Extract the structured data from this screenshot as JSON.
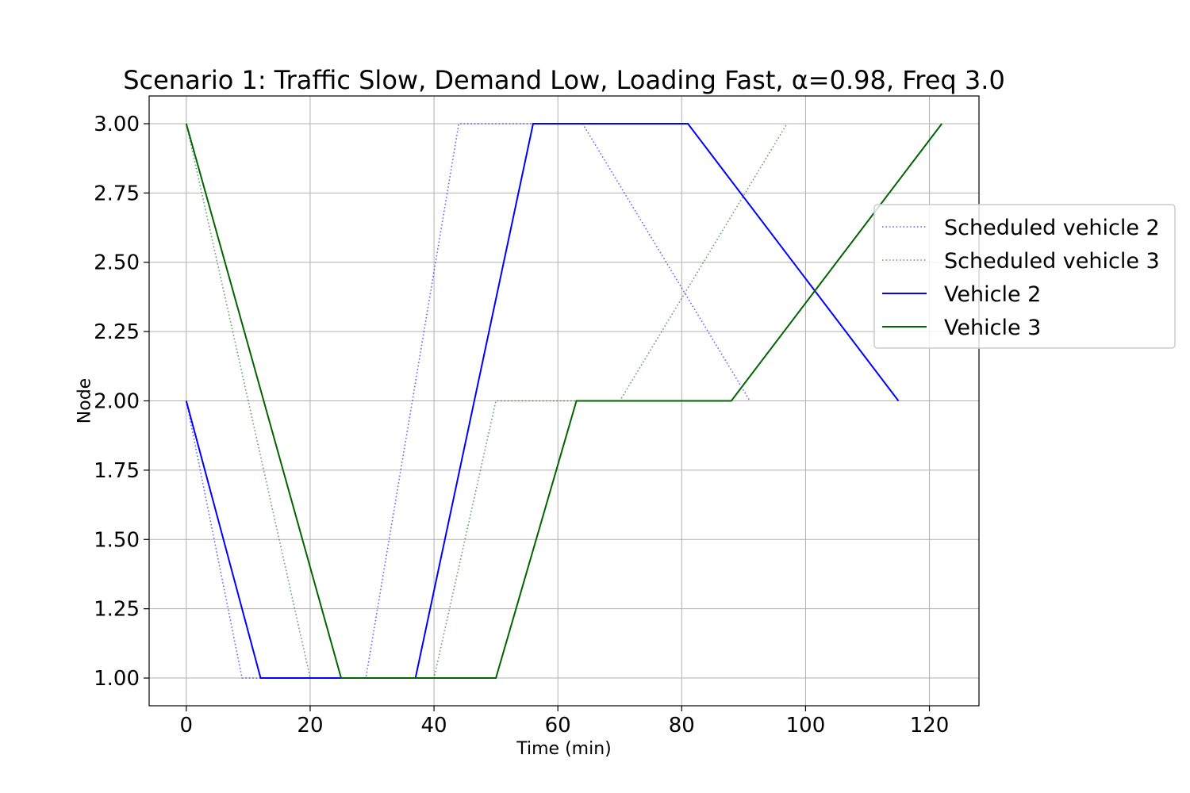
{
  "chart_data": {
    "type": "line",
    "title": "Scenario 1: Traffic Slow, Demand Low, Loading Fast, α=0.98, Freq 3.0",
    "xlabel": "Time (min)",
    "ylabel": "Node",
    "xlim": [
      -6,
      128
    ],
    "ylim": [
      0.9,
      3.1
    ],
    "xticks": [
      0,
      20,
      40,
      60,
      80,
      100,
      120
    ],
    "xtick_labels": [
      "0",
      "20",
      "40",
      "60",
      "80",
      "100",
      "120"
    ],
    "yticks": [
      1.0,
      1.25,
      1.5,
      1.75,
      2.0,
      2.25,
      2.5,
      2.75,
      3.0
    ],
    "ytick_labels": [
      "1.00",
      "1.25",
      "1.50",
      "1.75",
      "2.00",
      "2.25",
      "2.50",
      "2.75",
      "3.00"
    ],
    "grid": true,
    "legend_position": "right",
    "series": [
      {
        "name": "Scheduled vehicle 2",
        "style": "dotted",
        "color": "#0000ff",
        "opacity": 0.6,
        "points": [
          [
            0,
            2
          ],
          [
            9,
            1
          ],
          [
            29,
            1
          ],
          [
            44,
            3
          ],
          [
            64,
            3
          ],
          [
            91,
            2
          ]
        ]
      },
      {
        "name": "Scheduled vehicle 3",
        "style": "dotted",
        "color": "#006400",
        "opacity": 0.6,
        "points": [
          [
            0,
            3
          ],
          [
            20,
            1
          ],
          [
            40,
            1
          ],
          [
            50,
            2
          ],
          [
            70,
            2
          ],
          [
            97,
            3
          ]
        ]
      },
      {
        "name": "Vehicle 2",
        "style": "solid",
        "color": "#0000ff",
        "opacity": 1,
        "points": [
          [
            0,
            2
          ],
          [
            12,
            1
          ],
          [
            37,
            1
          ],
          [
            56,
            3
          ],
          [
            81,
            3
          ],
          [
            115,
            2
          ]
        ]
      },
      {
        "name": "Vehicle 3",
        "style": "solid",
        "color": "#006400",
        "opacity": 1,
        "points": [
          [
            0,
            3
          ],
          [
            25,
            1
          ],
          [
            50,
            1
          ],
          [
            63,
            2
          ],
          [
            88,
            2
          ],
          [
            122,
            3
          ]
        ]
      }
    ]
  }
}
